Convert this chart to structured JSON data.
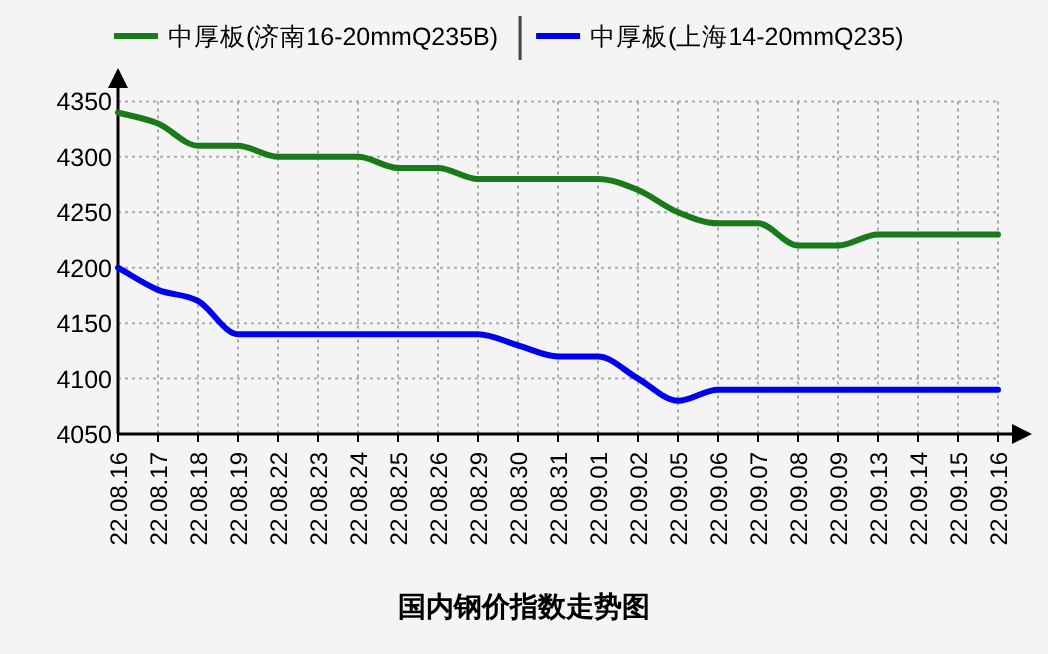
{
  "chart_data": {
    "type": "line",
    "title": "国内钢价指数走势图",
    "categories": [
      "22.08.16",
      "22.08.17",
      "22.08.18",
      "22.08.19",
      "22.08.22",
      "22.08.23",
      "22.08.24",
      "22.08.25",
      "22.08.26",
      "22.08.29",
      "22.08.30",
      "22.08.31",
      "22.09.01",
      "22.09.02",
      "22.09.05",
      "22.09.06",
      "22.09.07",
      "22.09.08",
      "22.09.09",
      "22.09.13",
      "22.09.14",
      "22.09.15",
      "22.09.16"
    ],
    "series": [
      {
        "name": "中厚板(济南16-20mmQ235B)",
        "color": "#1a7a1a",
        "values": [
          4340,
          4330,
          4310,
          4310,
          4300,
          4300,
          4300,
          4290,
          4290,
          4280,
          4280,
          4280,
          4280,
          4270,
          4250,
          4240,
          4240,
          4220,
          4220,
          4230,
          4230,
          4230,
          4230
        ]
      },
      {
        "name": "中厚板(上海14-20mmQ235)",
        "color": "#0000ee",
        "values": [
          4200,
          4180,
          4170,
          4140,
          4140,
          4140,
          4140,
          4140,
          4140,
          4140,
          4130,
          4120,
          4120,
          4100,
          4080,
          4090,
          4090,
          4090,
          4090,
          4090,
          4090,
          4090,
          4090
        ]
      }
    ],
    "ylim": [
      4050,
      4350
    ],
    "yticks": [
      4050,
      4100,
      4150,
      4200,
      4250,
      4300,
      4350
    ],
    "grid": true,
    "legend": "top",
    "line_style": "solid",
    "marker": "none"
  }
}
